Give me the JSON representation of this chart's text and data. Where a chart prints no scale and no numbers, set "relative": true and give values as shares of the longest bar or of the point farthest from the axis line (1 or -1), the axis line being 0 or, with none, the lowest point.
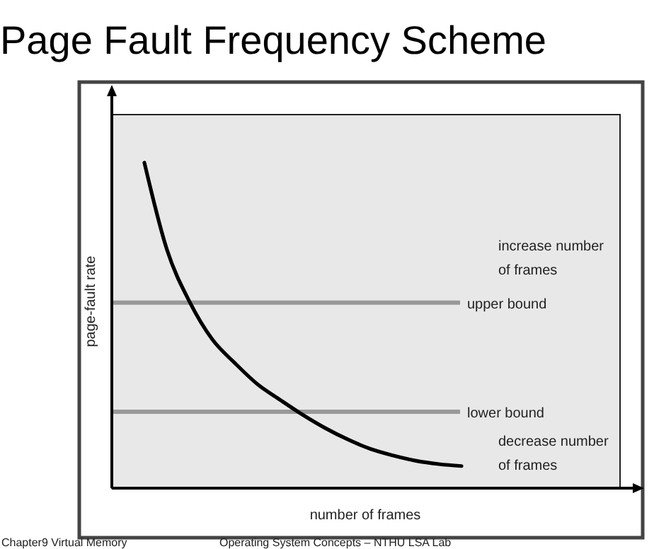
{
  "chart_data": {
    "type": "line",
    "title": "Page Fault Frequency Scheme",
    "xlabel": "number of frames",
    "ylabel": "page-fault rate",
    "relative": true,
    "categories": [
      null,
      null,
      null,
      null,
      null,
      null,
      null,
      null,
      null,
      null,
      null,
      null,
      null,
      null,
      null
    ],
    "series": [
      {
        "color": "#000000",
        "values": [
          1.0,
          0.732,
          0.572,
          0.457,
          0.384,
          0.319,
          0.271,
          0.225,
          0.184,
          0.149,
          0.12,
          0.1,
          0.084,
          0.074,
          0.068
        ]
      }
    ],
    "ref_lines": [
      {
        "axis": "y",
        "value": 0.57,
        "label": "upper bound",
        "color": "#999999"
      },
      {
        "axis": "y",
        "value": 0.235,
        "label": "lower bound",
        "color": "#999999"
      }
    ],
    "annotations": [
      "increase number of frames",
      "decrease number of frames",
      "Chapter9 Virtual Memory",
      "Operating System Concepts – NTHU LSA Lab"
    ],
    "grid": false,
    "marker": "none",
    "line_style": "solid"
  }
}
